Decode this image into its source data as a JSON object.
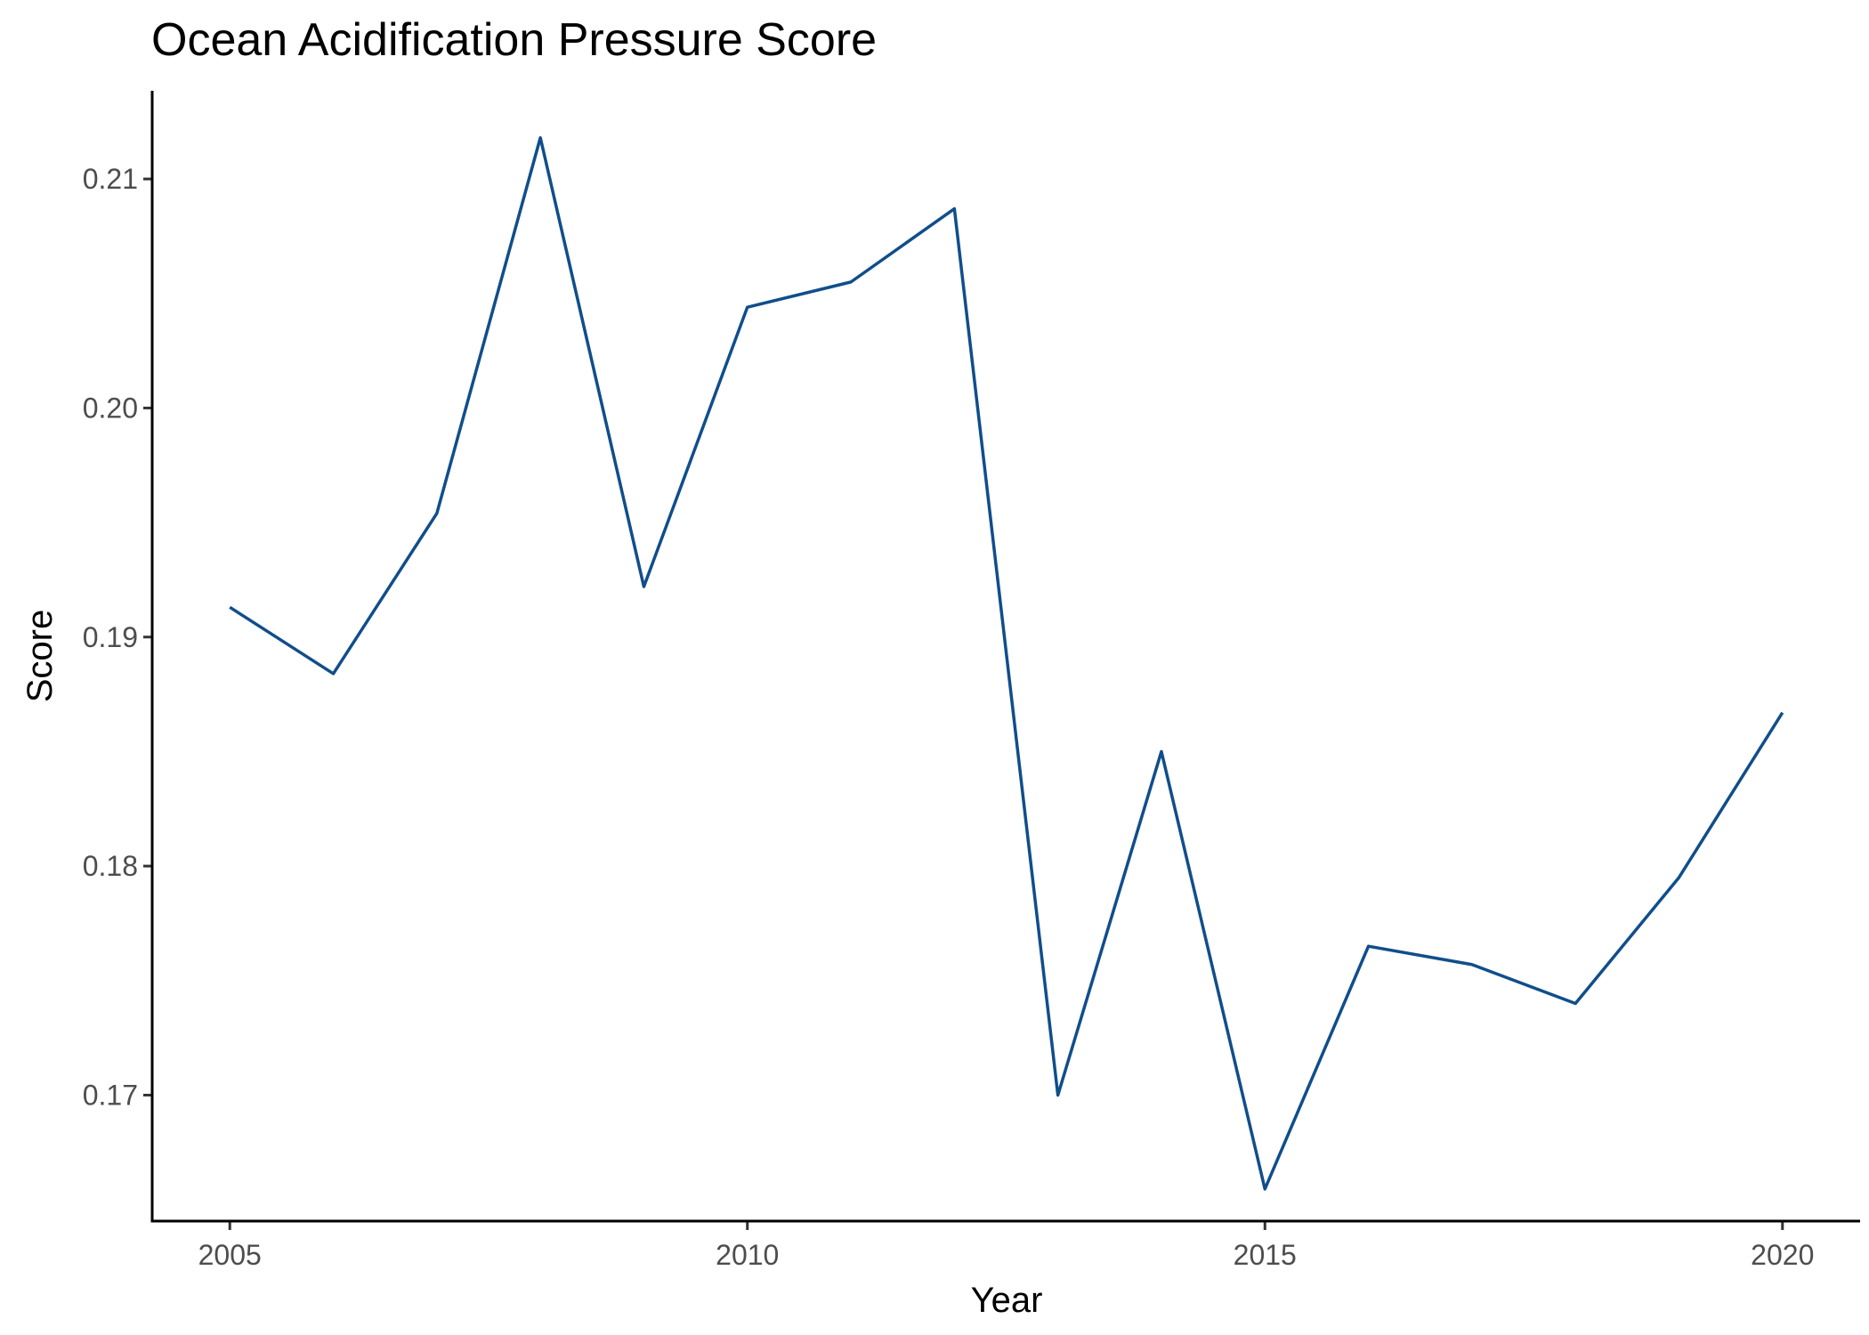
{
  "chart_data": {
    "type": "line",
    "title": "Ocean Acidification Pressure Score",
    "xlabel": "Year",
    "ylabel": "Score",
    "x": [
      2005,
      2006,
      2007,
      2008,
      2009,
      2010,
      2011,
      2012,
      2013,
      2014,
      2015,
      2016,
      2017,
      2018,
      2019,
      2020
    ],
    "series": [
      {
        "values": [
          0.1913,
          0.1884,
          0.1954,
          0.2118,
          0.1922,
          0.2044,
          0.2055,
          0.2087,
          0.17,
          0.185,
          0.1659,
          0.1765,
          0.1757,
          0.174,
          0.1795,
          0.1867
        ],
        "color": "#104e8b"
      }
    ],
    "xlim": [
      2004.25,
      2020.75
    ],
    "ylim": [
      0.1645,
      0.21385
    ],
    "x_ticks": [
      2005,
      2010,
      2015,
      2020
    ],
    "x_tick_labels": [
      "2005",
      "2010",
      "2015",
      "2020"
    ],
    "y_ticks": [
      0.17,
      0.18,
      0.19,
      0.2,
      0.21
    ],
    "y_tick_labels": [
      "0.17",
      "0.18",
      "0.19",
      "0.20",
      "0.21"
    ],
    "grid": false,
    "legend": "none"
  }
}
